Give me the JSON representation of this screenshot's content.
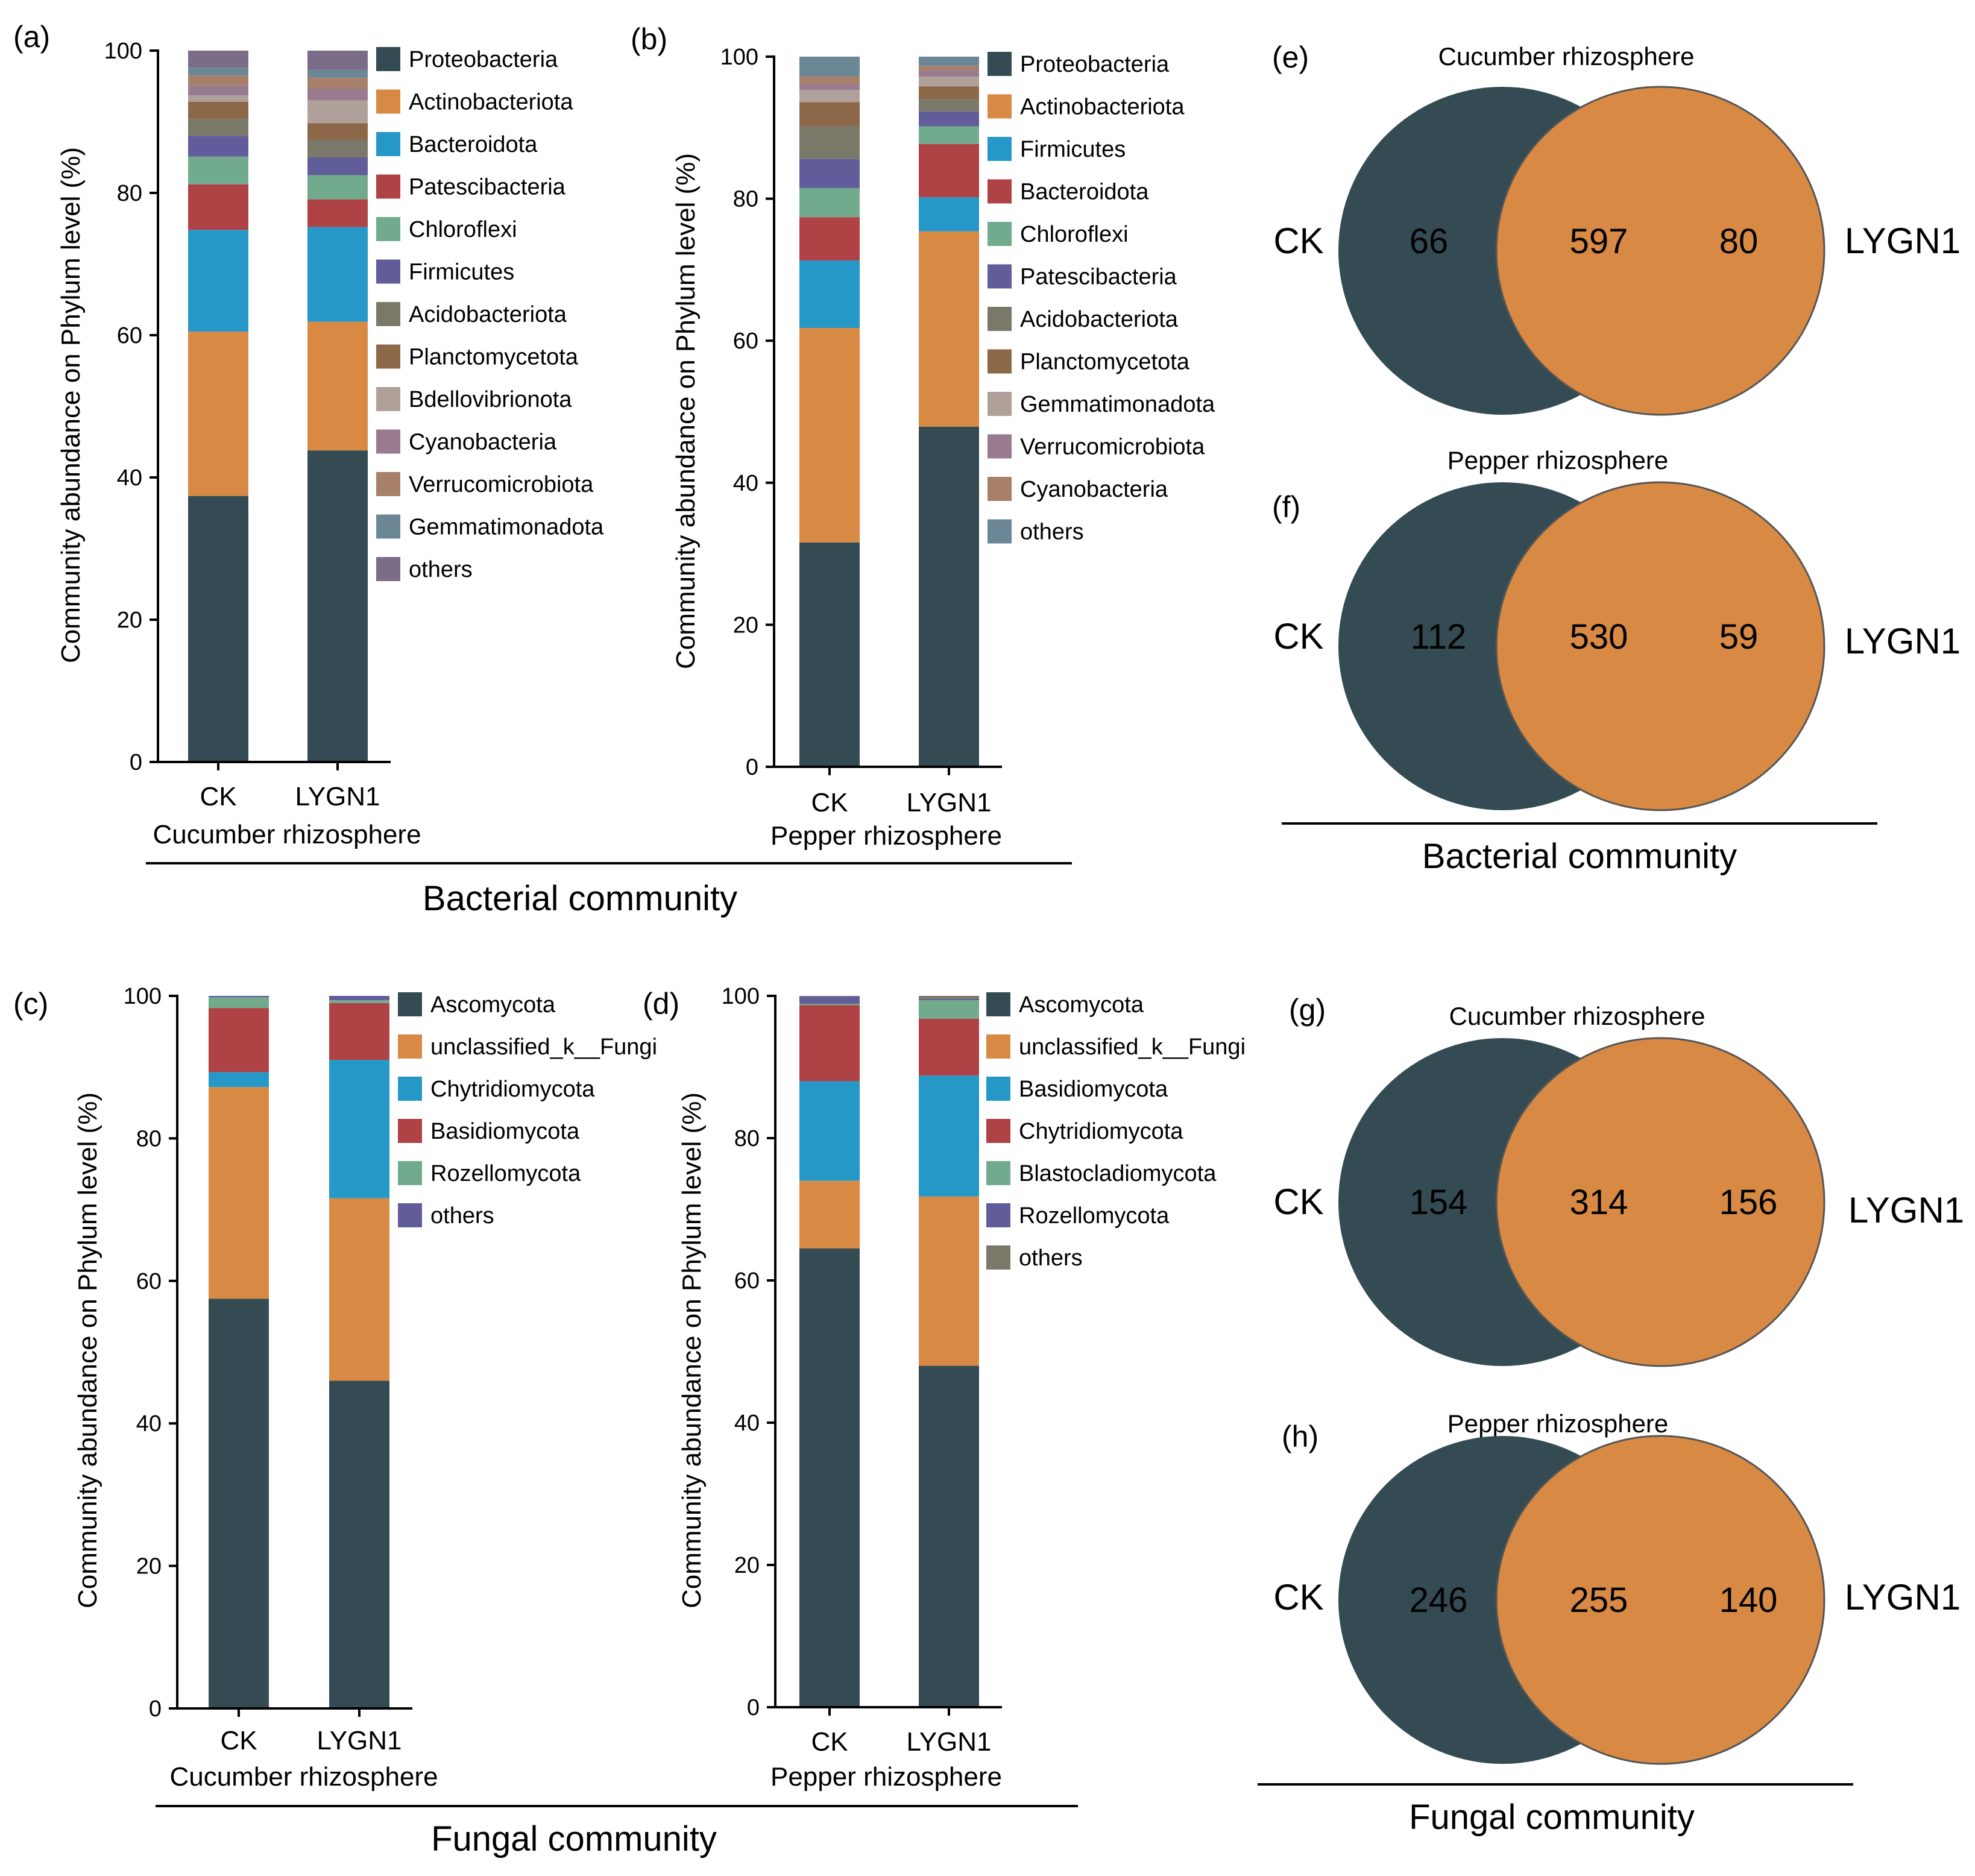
{
  "chart_data": [
    {
      "panel": "(a)",
      "type": "bar",
      "stacked": true,
      "ylabel": "Community abundance on Phylum level (%)",
      "ylim": [
        0,
        100
      ],
      "yticks": [
        "0",
        "20",
        "40",
        "60",
        "80",
        "100"
      ],
      "categories": [
        "CK",
        "LYGN1"
      ],
      "xlabel": "Cucumber rhizosphere",
      "series": [
        {
          "name": "Proteobacteria",
          "color": "#344B53",
          "values": [
            37.4,
            43.8
          ]
        },
        {
          "name": "Actinobacteriota",
          "color": "#D88A44",
          "values": [
            23.1,
            18.1
          ]
        },
        {
          "name": "Bacteroidota",
          "color": "#2598C8",
          "values": [
            14.3,
            13.3
          ]
        },
        {
          "name": "Patescibacteria",
          "color": "#AE4245",
          "values": [
            6.4,
            3.9
          ]
        },
        {
          "name": "Chloroflexi",
          "color": "#72AA8E",
          "values": [
            3.9,
            3.4
          ]
        },
        {
          "name": "Firmicutes",
          "color": "#615D9B",
          "values": [
            2.9,
            2.5
          ]
        },
        {
          "name": "Acidobacteriota",
          "color": "#7A7868",
          "values": [
            2.4,
            2.5
          ]
        },
        {
          "name": "Planctomycetota",
          "color": "#8C6748",
          "values": [
            2.4,
            2.3
          ]
        },
        {
          "name": "Bdellovibrionota",
          "color": "#AFA199",
          "values": [
            0.9,
            3.2
          ]
        },
        {
          "name": "Cyanobacteria",
          "color": "#987B8F",
          "values": [
            1.4,
            1.7
          ]
        },
        {
          "name": "Verrucomicrobiota",
          "color": "#A87F69",
          "values": [
            1.4,
            1.5
          ]
        },
        {
          "name": "Gemmatimonadota",
          "color": "#6B8795",
          "values": [
            1.1,
            1.1
          ]
        },
        {
          "name": "others",
          "color": "#7B6D87",
          "values": [
            2.4,
            2.7
          ]
        }
      ]
    },
    {
      "panel": "(b)",
      "type": "bar",
      "stacked": true,
      "ylabel": "Community abundance on Phylum level (%)",
      "ylim": [
        0,
        100
      ],
      "yticks": [
        "0",
        "20",
        "40",
        "60",
        "80",
        "100"
      ],
      "categories": [
        "CK",
        "LYGN1"
      ],
      "xlabel": "Pepper rhizosphere",
      "series": [
        {
          "name": "Proteobacteria",
          "color": "#344B53",
          "values": [
            31.6,
            47.9
          ]
        },
        {
          "name": "Actinobacteriota",
          "color": "#D88A44",
          "values": [
            30.2,
            27.5
          ]
        },
        {
          "name": "Firmicutes",
          "color": "#2598C8",
          "values": [
            9.5,
            4.8
          ]
        },
        {
          "name": "Bacteroidota",
          "color": "#AE4245",
          "values": [
            6.1,
            7.5
          ]
        },
        {
          "name": "Chloroflexi",
          "color": "#72AA8E",
          "values": [
            4.1,
            2.5
          ]
        },
        {
          "name": "Patescibacteria",
          "color": "#615D9B",
          "values": [
            4.1,
            2.1
          ]
        },
        {
          "name": "Acidobacteriota",
          "color": "#7A7868",
          "values": [
            4.6,
            1.7
          ]
        },
        {
          "name": "Planctomycetota",
          "color": "#8C6748",
          "values": [
            3.4,
            1.8
          ]
        },
        {
          "name": "Gemmatimonadota",
          "color": "#AFA199",
          "values": [
            1.7,
            1.4
          ]
        },
        {
          "name": "Verrucomicrobiota",
          "color": "#987B8F",
          "values": [
            0.8,
            0.9
          ]
        },
        {
          "name": "Cyanobacteria",
          "color": "#A87F69",
          "values": [
            1.1,
            0.6
          ]
        },
        {
          "name": "others",
          "color": "#6B8795",
          "values": [
            2.8,
            1.3
          ]
        }
      ]
    },
    {
      "panel": "(c)",
      "type": "bar",
      "stacked": true,
      "ylabel": "Community abundance on Phylum level (%)",
      "ylim": [
        0,
        100
      ],
      "yticks": [
        "0",
        "20",
        "40",
        "60",
        "80",
        "100"
      ],
      "categories": [
        "CK",
        "LYGN1"
      ],
      "xlabel": "Cucumber rhizosphere",
      "series": [
        {
          "name": "Ascomycota",
          "color": "#344B53",
          "values": [
            57.5,
            46.0
          ]
        },
        {
          "name": "unclassified_k__Fungi",
          "color": "#D88A44",
          "values": [
            29.7,
            25.6
          ]
        },
        {
          "name": "Chytridiomycota",
          "color": "#2598C8",
          "values": [
            2.1,
            19.4
          ]
        },
        {
          "name": "Basidiomycota",
          "color": "#AE4245",
          "values": [
            9.0,
            8.0
          ]
        },
        {
          "name": "Rozellomycota",
          "color": "#72AA8E",
          "values": [
            1.5,
            0.4
          ]
        },
        {
          "name": "others",
          "color": "#615D9B",
          "values": [
            0.2,
            0.6
          ]
        }
      ]
    },
    {
      "panel": "(d)",
      "type": "bar",
      "stacked": true,
      "ylabel": "Community abundance on Phylum level (%)",
      "ylim": [
        0,
        100
      ],
      "yticks": [
        "0",
        "20",
        "40",
        "60",
        "80",
        "100"
      ],
      "categories": [
        "CK",
        "LYGN1"
      ],
      "xlabel": "Pepper rhizosphere",
      "series": [
        {
          "name": "Ascomycota",
          "color": "#344B53",
          "values": [
            64.5,
            48.0
          ]
        },
        {
          "name": "unclassified_k__Fungi",
          "color": "#D88A44",
          "values": [
            9.5,
            23.8
          ]
        },
        {
          "name": "Basidiomycota",
          "color": "#2598C8",
          "values": [
            14.0,
            17.0
          ]
        },
        {
          "name": "Chytridiomycota",
          "color": "#AE4245",
          "values": [
            10.7,
            8.0
          ]
        },
        {
          "name": "Blastocladiomycota",
          "color": "#72AA8E",
          "values": [
            0.2,
            2.6
          ]
        },
        {
          "name": "Rozellomycota",
          "color": "#615D9B",
          "values": [
            1.0,
            0.2
          ]
        },
        {
          "name": "others",
          "color": "#7A7868",
          "values": [
            0.1,
            0.4
          ]
        }
      ]
    }
  ],
  "venns": [
    {
      "panel": "(e)",
      "title": "Cucumber rhizosphere",
      "left_label": "CK",
      "right_label": "LYGN1",
      "left_only": "66",
      "shared": "597",
      "right_only": "80"
    },
    {
      "panel": "(f)",
      "title": "Pepper rhizosphere",
      "left_label": "CK",
      "right_label": "LYGN1",
      "left_only": "112",
      "shared": "530",
      "right_only": "59"
    },
    {
      "panel": "(g)",
      "title": "Cucumber rhizosphere",
      "left_label": "CK",
      "right_label": "LYGN1",
      "left_only": "154",
      "shared": "314",
      "right_only": "156"
    },
    {
      "panel": "(h)",
      "title": "Pepper rhizosphere",
      "left_label": "CK",
      "right_label": "LYGN1",
      "left_only": "246",
      "shared": "255",
      "right_only": "140"
    }
  ],
  "venn_colors": {
    "left": "#344B53",
    "right": "#D88A44"
  },
  "groups": {
    "bacterial_bars": "Bacterial community",
    "bacterial_venn": "Bacterial community",
    "fungal_bars": "Fungal community",
    "fungal_venn": "Fungal community"
  }
}
